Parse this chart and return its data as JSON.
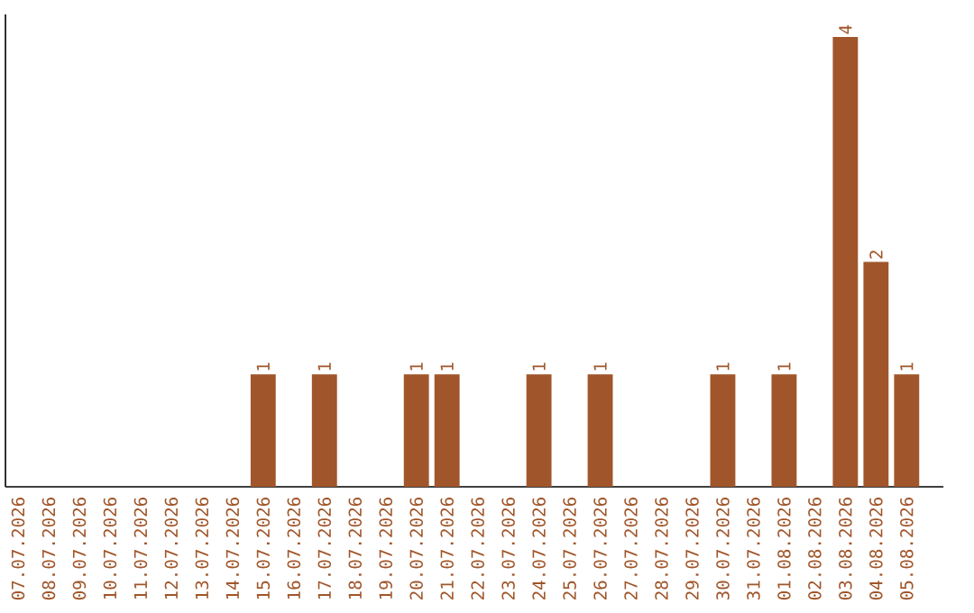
{
  "chart_data": {
    "type": "bar",
    "categories": [
      "07.07.2026",
      "08.07.2026",
      "09.07.2026",
      "10.07.2026",
      "11.07.2026",
      "12.07.2026",
      "13.07.2026",
      "14.07.2026",
      "15.07.2026",
      "16.07.2026",
      "17.07.2026",
      "18.07.2026",
      "19.07.2026",
      "20.07.2026",
      "21.07.2026",
      "22.07.2026",
      "23.07.2026",
      "24.07.2026",
      "25.07.2026",
      "26.07.2026",
      "27.07.2026",
      "28.07.2026",
      "29.07.2026",
      "30.07.2026",
      "31.07.2026",
      "01.08.2026",
      "02.08.2026",
      "03.08.2026",
      "04.08.2026",
      "05.08.2026"
    ],
    "values": [
      0,
      0,
      0,
      0,
      0,
      0,
      0,
      0,
      1,
      0,
      1,
      0,
      0,
      1,
      1,
      0,
      0,
      1,
      0,
      1,
      0,
      0,
      0,
      1,
      0,
      1,
      0,
      4,
      2,
      1
    ],
    "value_labels": [
      null,
      null,
      null,
      null,
      null,
      null,
      null,
      null,
      "1",
      null,
      "1",
      null,
      null,
      "1",
      "1",
      null,
      null,
      "1",
      null,
      "1",
      null,
      null,
      null,
      "1",
      null,
      "1",
      null,
      "4",
      "2",
      "1"
    ],
    "color": "#a0562a",
    "ylim": [
      0,
      4.2
    ],
    "tick_labels": "x"
  }
}
